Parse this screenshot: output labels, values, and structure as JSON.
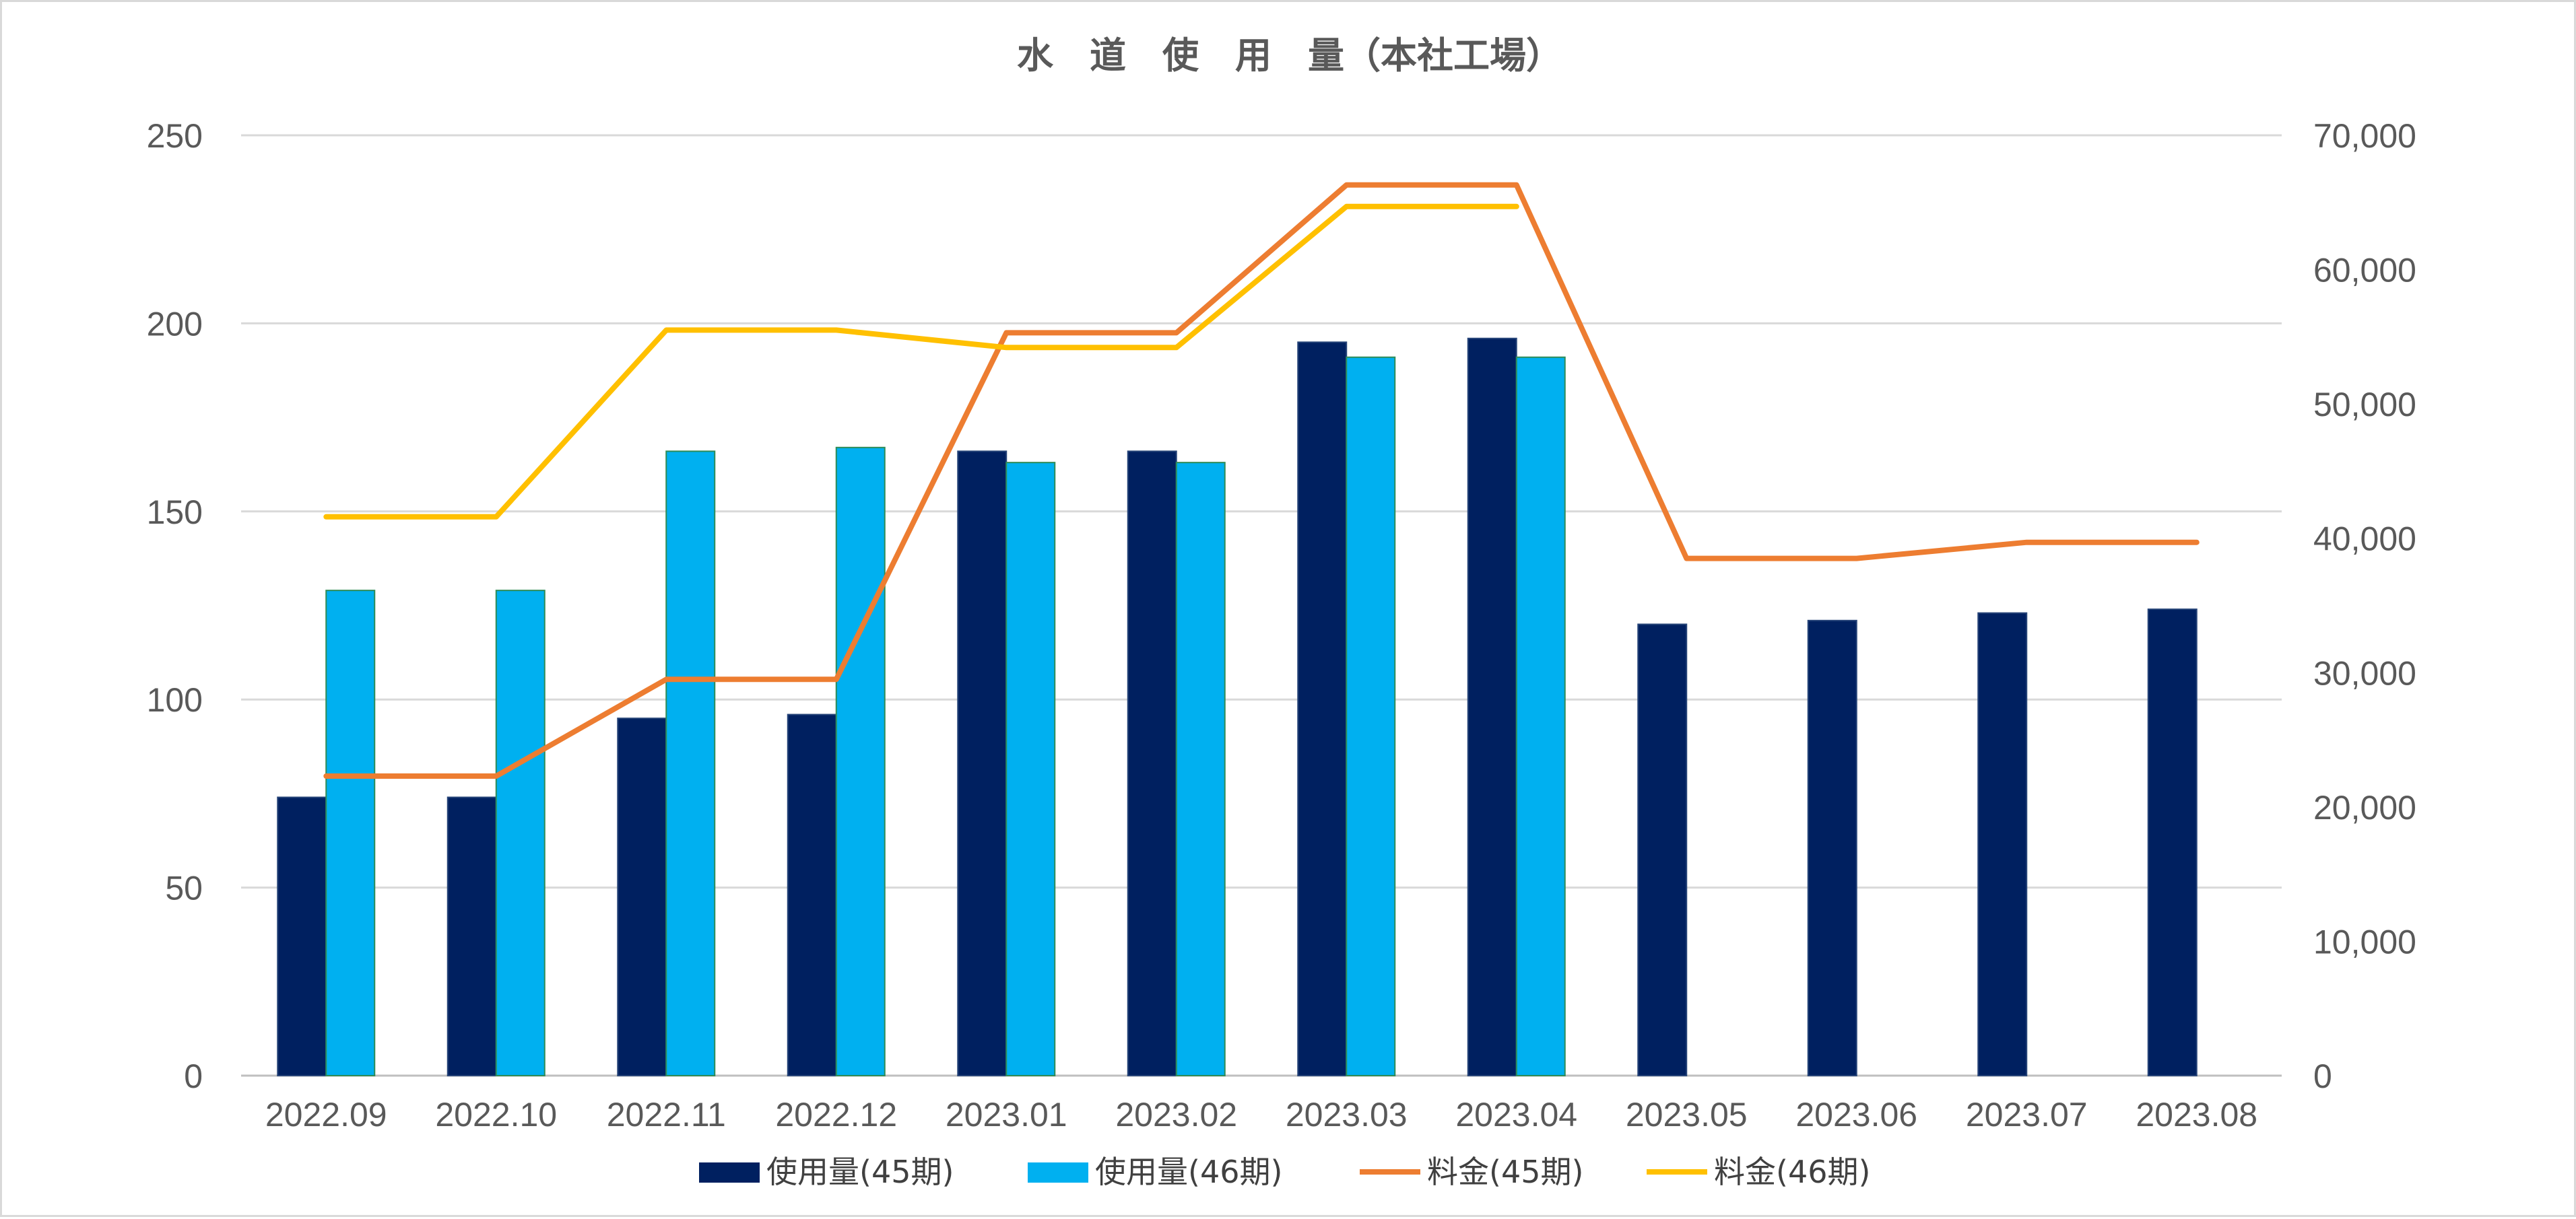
{
  "chart_data": {
    "type": "bar",
    "title": "水　道　使　用　量（本社工場）",
    "categories": [
      "2022.09",
      "2022.10",
      "2022.11",
      "2022.12",
      "2023.01",
      "2023.02",
      "2023.03",
      "2023.04",
      "2023.05",
      "2023.06",
      "2023.07",
      "2023.08"
    ],
    "y_left": {
      "ylim": [
        0,
        250
      ],
      "ticks": [
        "0",
        "50",
        "100",
        "150",
        "200",
        "250"
      ]
    },
    "y_right": {
      "ylim": [
        0,
        70000
      ],
      "ticks": [
        "0",
        "10,000",
        "20,000",
        "30,000",
        "40,000",
        "50,000",
        "60,000",
        "70,000"
      ]
    },
    "grid": true,
    "legend_position": "bottom",
    "series": [
      {
        "name": "使用量(45期)",
        "kind": "bar",
        "axis": "left",
        "color": "#002060",
        "values": [
          74,
          74,
          95,
          96,
          166,
          166,
          195,
          196,
          120,
          121,
          123,
          124
        ]
      },
      {
        "name": "使用量(46期)",
        "kind": "bar",
        "axis": "left",
        "color": "#00b0f0",
        "values": [
          129,
          129,
          166,
          167,
          163,
          163,
          191,
          191,
          null,
          null,
          null,
          null
        ]
      },
      {
        "name": "料金(45期)",
        "kind": "line",
        "axis": "right",
        "color": "#ed7d31",
        "values": [
          22300,
          22300,
          29500,
          29500,
          55300,
          55300,
          66300,
          66300,
          38500,
          38500,
          39700,
          39700
        ]
      },
      {
        "name": "料金(46期)",
        "kind": "line",
        "axis": "right",
        "color": "#ffc000",
        "values": [
          41600,
          41600,
          55500,
          55500,
          54200,
          54200,
          64700,
          64700,
          null,
          null,
          null,
          null
        ]
      }
    ]
  }
}
